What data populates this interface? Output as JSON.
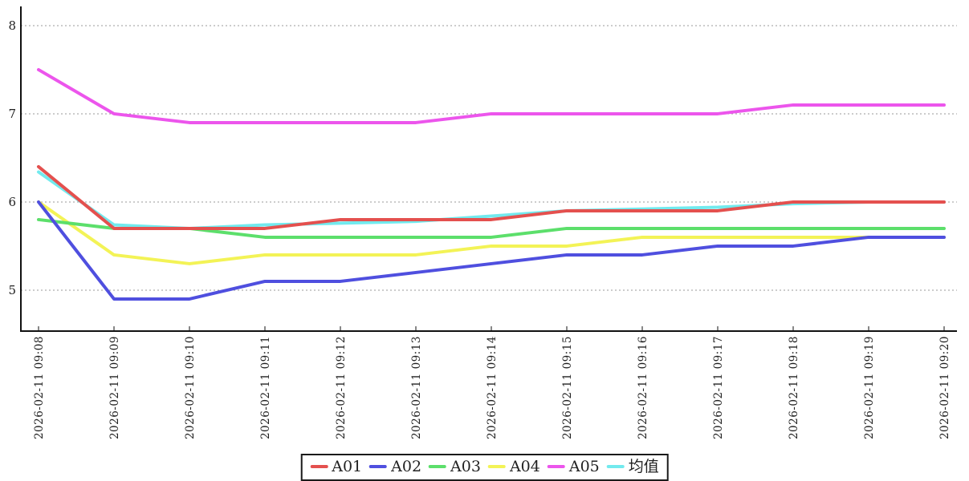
{
  "chart_data": {
    "type": "line",
    "title": "",
    "xlabel": "",
    "ylabel": "",
    "x": [
      "2026-02-11 09:08",
      "2026-02-11 09:09",
      "2026-02-11 09:10",
      "2026-02-11 09:11",
      "2026-02-11 09:12",
      "2026-02-11 09:13",
      "2026-02-11 09:14",
      "2026-02-11 09:15",
      "2026-02-11 09:16",
      "2026-02-11 09:17",
      "2026-02-11 09:18",
      "2026-02-11 09:19",
      "2026-02-11 09:20"
    ],
    "series": [
      {
        "name": "A01",
        "color": "#e4504e",
        "values": [
          6.4,
          5.7,
          5.7,
          5.7,
          5.8,
          5.8,
          5.8,
          5.9,
          5.9,
          5.9,
          6.0,
          6.0,
          6.0
        ]
      },
      {
        "name": "A02",
        "color": "#4f4fdf",
        "values": [
          6.0,
          4.9,
          4.9,
          5.1,
          5.1,
          5.2,
          5.3,
          5.4,
          5.4,
          5.5,
          5.5,
          5.6,
          5.6
        ]
      },
      {
        "name": "A03",
        "color": "#5cdf6b",
        "values": [
          5.8,
          5.7,
          5.7,
          5.6,
          5.6,
          5.6,
          5.6,
          5.7,
          5.7,
          5.7,
          5.7,
          5.7,
          5.7
        ]
      },
      {
        "name": "A04",
        "color": "#f3f356",
        "values": [
          6.0,
          5.4,
          5.3,
          5.4,
          5.4,
          5.4,
          5.5,
          5.5,
          5.6,
          5.6,
          5.6,
          5.6,
          5.6
        ]
      },
      {
        "name": "A05",
        "color": "#ec55ec",
        "values": [
          7.5,
          7.0,
          6.9,
          6.9,
          6.9,
          6.9,
          7.0,
          7.0,
          7.0,
          7.0,
          7.1,
          7.1,
          7.1
        ]
      },
      {
        "name": "均值",
        "color": "#72eaee",
        "values": [
          6.34,
          5.74,
          5.7,
          5.74,
          5.76,
          5.78,
          5.84,
          5.9,
          5.92,
          5.94,
          5.98,
          6.0,
          6.0
        ]
      }
    ],
    "yticks": [
      8,
      7,
      6,
      5
    ],
    "ylim": [
      4.545,
      8.2
    ],
    "grid": true,
    "grid_color": "#999999",
    "axis_color": "#111111",
    "label_color": "#222222",
    "legend_position": "bottom-center"
  }
}
